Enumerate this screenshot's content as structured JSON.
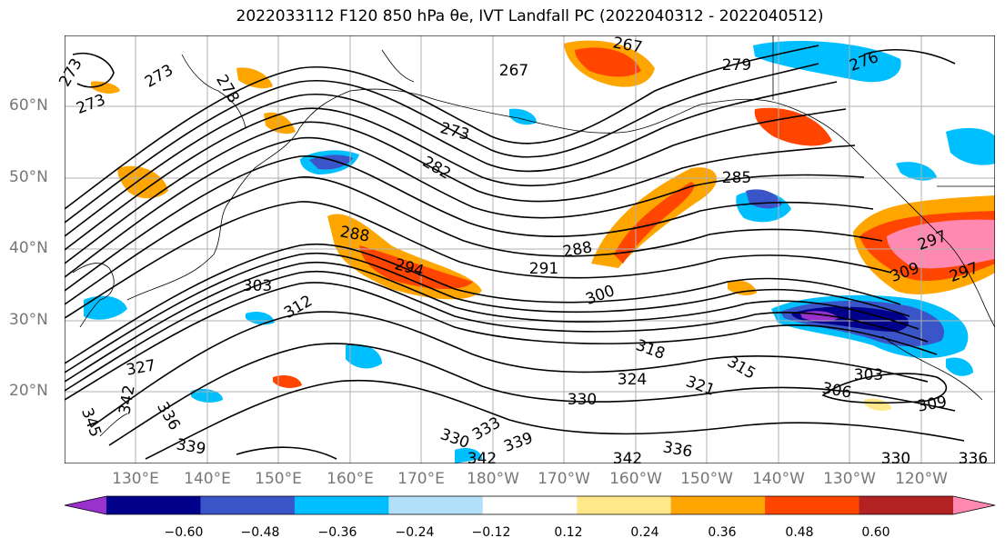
{
  "title": "2022033112 F120 850 hPa θe, IVT Landfall PC (2022040312 - 2022040512)",
  "lat_labels": [
    "60°N",
    "50°N",
    "40°N",
    "30°N",
    "20°N"
  ],
  "lon_labels": [
    "130°E",
    "140°E",
    "150°E",
    "160°E",
    "170°E",
    "180°W",
    "170°W",
    "160°W",
    "150°W",
    "140°W",
    "130°W",
    "120°W"
  ],
  "colorbar": {
    "colors": [
      "#9932cc",
      "#00008b",
      "#3a55c8",
      "#00bfff",
      "#b0e0fa",
      "#ffffff",
      "#ffe98a",
      "#ffa500",
      "#ff4500",
      "#b22222",
      "#ff89b0"
    ],
    "ticks": [
      "−0.60",
      "−0.48",
      "−0.36",
      "−0.24",
      "−0.12",
      "0.12",
      "0.24",
      "0.36",
      "0.48",
      "0.60"
    ]
  },
  "contour_labels": [
    "273",
    "273",
    "278",
    "273",
    "267",
    "267",
    "279",
    "276",
    "273",
    "282",
    "285",
    "288",
    "294",
    "288",
    "291",
    "297",
    "303",
    "312",
    "300",
    "309",
    "318",
    "315",
    "303",
    "321",
    "324",
    "330",
    "306",
    "309",
    "342",
    "336",
    "339",
    "333",
    "345",
    "330",
    "339",
    "342",
    "342",
    "336",
    "330",
    "336",
    "327",
    "297"
  ]
}
